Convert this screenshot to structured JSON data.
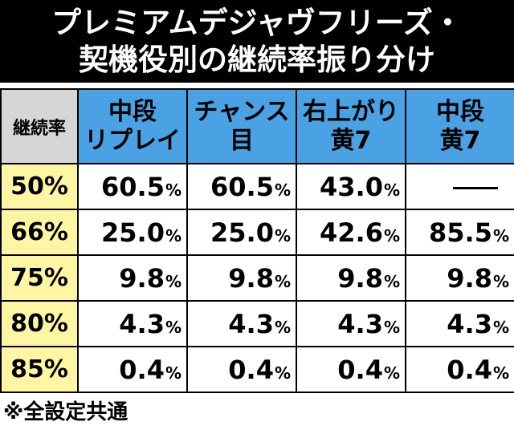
{
  "title": {
    "line1": "プレミアムデジャヴフリーズ・",
    "line2": "契機役別の継続率振り分け"
  },
  "table": {
    "corner": "継続率",
    "columns": [
      {
        "line1": "中段",
        "line2": "リプレイ"
      },
      {
        "line1": "チャンス",
        "line2": "目"
      },
      {
        "line1": "右上がり",
        "line2": "黄7"
      },
      {
        "line1": "中段",
        "line2": "黄7"
      }
    ],
    "pct_suffix": "%",
    "rows": [
      {
        "rate": "50%",
        "values": [
          "60.5",
          "60.5",
          "43.0",
          "—"
        ]
      },
      {
        "rate": "66%",
        "values": [
          "25.0",
          "25.0",
          "42.6",
          "85.5"
        ]
      },
      {
        "rate": "75%",
        "values": [
          "9.8",
          "9.8",
          "9.8",
          "9.8"
        ]
      },
      {
        "rate": "80%",
        "values": [
          "4.3",
          "4.3",
          "4.3",
          "4.3"
        ]
      },
      {
        "rate": "85%",
        "values": [
          "0.4",
          "0.4",
          "0.4",
          "0.4"
        ]
      }
    ]
  },
  "note": "※全設定共通",
  "colors": {
    "header_blue": "#4aa1e3",
    "rate_yellow": "#fff6a3",
    "corner_gray": "#d6d6d6",
    "title_bg": "#000000"
  }
}
